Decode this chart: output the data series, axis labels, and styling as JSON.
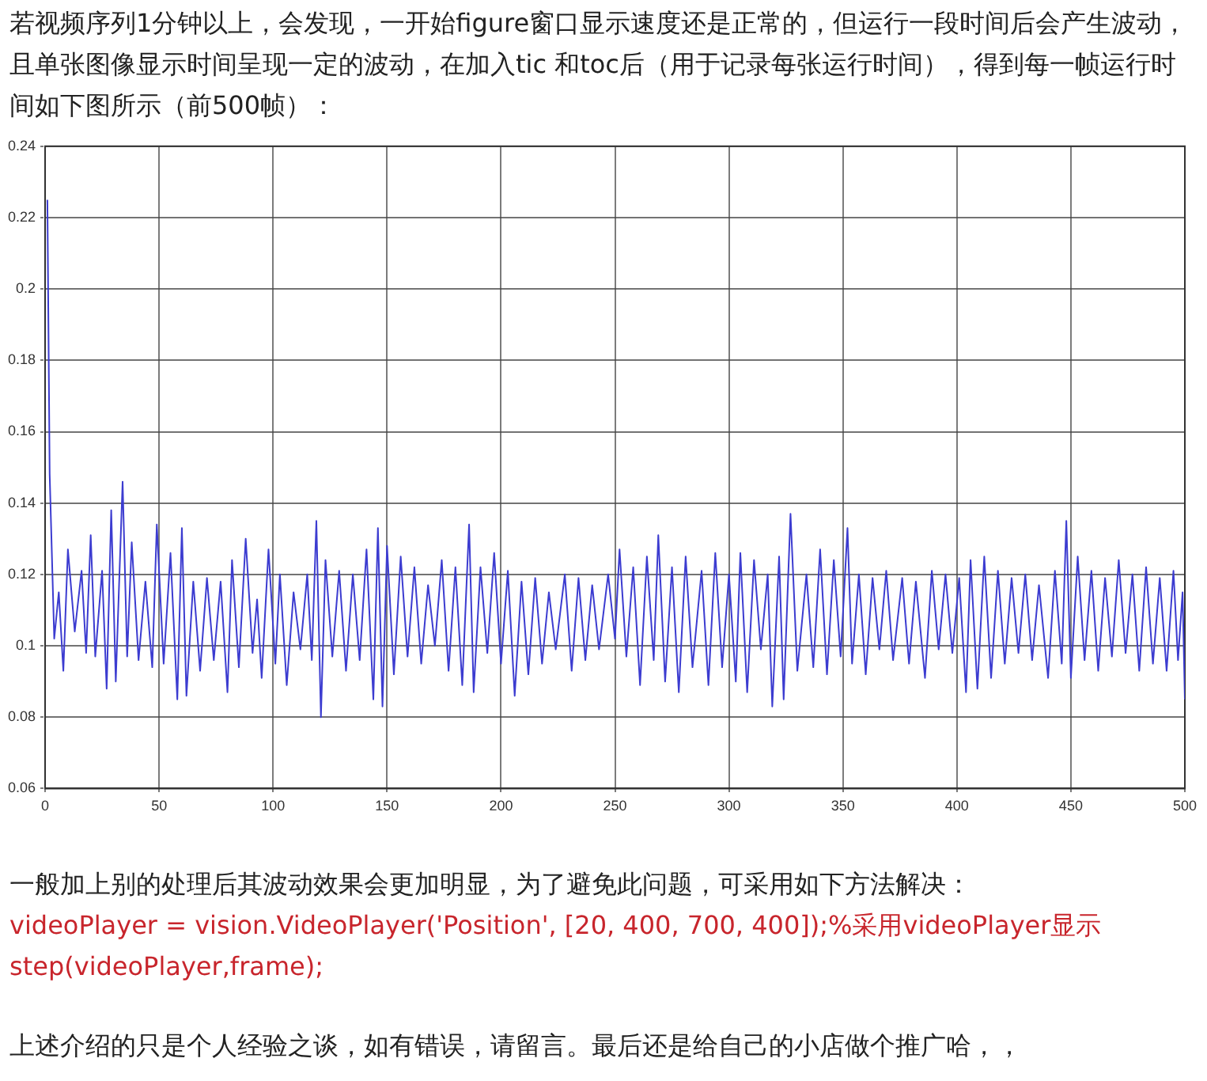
{
  "chart_data": {
    "type": "line",
    "title": "若视频序列1分钟以上，会发现，一开始figure窗口显示速度还是正常的，但运行一段时间后会产生波动，且单张图像显示时间呈现一定的波动，在加入tic 和toc后（用于记录每张运行时间），得到每一帧运行时间如下图所示（前500帧）：",
    "annotations": [
      "一般加上别的处理后其波动效果会更加明显，为了避免此问题，可采用如下方法解决：",
      "videoPlayer = vision.VideoPlayer('Position', [20, 400, 700, 400]);%采用videoPlayer显示",
      "step(videoPlayer,frame);",
      "上述介绍的只是个人经验之谈，如有错误，请留言。最后还是给自己的小店做个推广哈，，"
    ],
    "x": [
      1,
      2,
      4,
      6,
      8,
      10,
      13,
      16,
      18,
      20,
      22,
      25,
      27,
      29,
      31,
      34,
      36,
      38,
      41,
      44,
      47,
      49,
      52,
      55,
      58,
      60,
      62,
      65,
      68,
      71,
      74,
      77,
      80,
      82,
      85,
      88,
      91,
      93,
      95,
      98,
      101,
      103,
      106,
      109,
      112,
      115,
      117,
      119,
      121,
      123,
      126,
      129,
      132,
      135,
      138,
      141,
      144,
      146,
      148,
      150,
      153,
      156,
      159,
      162,
      165,
      168,
      171,
      174,
      177,
      180,
      183,
      186,
      188,
      191,
      194,
      197,
      200,
      203,
      206,
      209,
      212,
      215,
      218,
      221,
      224,
      228,
      231,
      234,
      237,
      240,
      243,
      247,
      250,
      252,
      255,
      258,
      261,
      264,
      267,
      269,
      272,
      275,
      278,
      281,
      284,
      288,
      291,
      294,
      297,
      300,
      303,
      305,
      308,
      311,
      314,
      317,
      319,
      322,
      324,
      327,
      330,
      334,
      337,
      340,
      343,
      346,
      349,
      352,
      354,
      357,
      360,
      363,
      366,
      369,
      372,
      376,
      379,
      382,
      386,
      389,
      392,
      395,
      398,
      401,
      404,
      406,
      409,
      412,
      415,
      418,
      421,
      424,
      427,
      430,
      433,
      436,
      440,
      443,
      446,
      448,
      450,
      453,
      456,
      459,
      462,
      465,
      468,
      471,
      474,
      477,
      480,
      483,
      486,
      489,
      492,
      495,
      497,
      499,
      500
    ],
    "series": [
      {
        "color": "#3c3cd0",
        "values": [
          0.225,
          0.148,
          0.102,
          0.115,
          0.093,
          0.127,
          0.104,
          0.121,
          0.098,
          0.131,
          0.097,
          0.121,
          0.088,
          0.138,
          0.09,
          0.146,
          0.097,
          0.129,
          0.096,
          0.118,
          0.094,
          0.134,
          0.095,
          0.126,
          0.085,
          0.133,
          0.086,
          0.118,
          0.093,
          0.119,
          0.096,
          0.118,
          0.087,
          0.124,
          0.094,
          0.13,
          0.098,
          0.113,
          0.091,
          0.127,
          0.095,
          0.12,
          0.089,
          0.115,
          0.099,
          0.12,
          0.096,
          0.135,
          0.08,
          0.124,
          0.097,
          0.121,
          0.093,
          0.12,
          0.096,
          0.127,
          0.085,
          0.133,
          0.083,
          0.128,
          0.092,
          0.125,
          0.097,
          0.122,
          0.095,
          0.117,
          0.1,
          0.124,
          0.093,
          0.122,
          0.089,
          0.134,
          0.087,
          0.122,
          0.098,
          0.126,
          0.095,
          0.121,
          0.086,
          0.118,
          0.092,
          0.119,
          0.095,
          0.115,
          0.099,
          0.12,
          0.093,
          0.119,
          0.096,
          0.117,
          0.099,
          0.12,
          0.102,
          0.127,
          0.097,
          0.122,
          0.089,
          0.125,
          0.096,
          0.131,
          0.09,
          0.122,
          0.087,
          0.125,
          0.094,
          0.121,
          0.089,
          0.126,
          0.094,
          0.12,
          0.09,
          0.126,
          0.087,
          0.124,
          0.099,
          0.12,
          0.083,
          0.125,
          0.085,
          0.137,
          0.093,
          0.12,
          0.094,
          0.127,
          0.092,
          0.124,
          0.097,
          0.133,
          0.095,
          0.12,
          0.092,
          0.119,
          0.099,
          0.121,
          0.096,
          0.119,
          0.095,
          0.118,
          0.091,
          0.121,
          0.099,
          0.12,
          0.098,
          0.119,
          0.087,
          0.124,
          0.088,
          0.125,
          0.091,
          0.121,
          0.095,
          0.119,
          0.098,
          0.12,
          0.096,
          0.117,
          0.091,
          0.121,
          0.095,
          0.135,
          0.091,
          0.125,
          0.096,
          0.121,
          0.093,
          0.119,
          0.097,
          0.124,
          0.098,
          0.12,
          0.093,
          0.122,
          0.095,
          0.119,
          0.093,
          0.121,
          0.096,
          0.115,
          0.085
        ]
      }
    ],
    "xlim": [
      0,
      500
    ],
    "xticks": [
      0,
      50,
      100,
      150,
      200,
      250,
      300,
      350,
      400,
      450,
      500
    ],
    "ylim": [
      0.06,
      0.24
    ],
    "yticks": [
      0.06,
      0.08,
      0.1,
      0.12,
      0.14,
      0.16,
      0.18,
      0.2,
      0.22,
      0.24
    ],
    "grid": true,
    "marker": "none",
    "line_style": "solid"
  }
}
